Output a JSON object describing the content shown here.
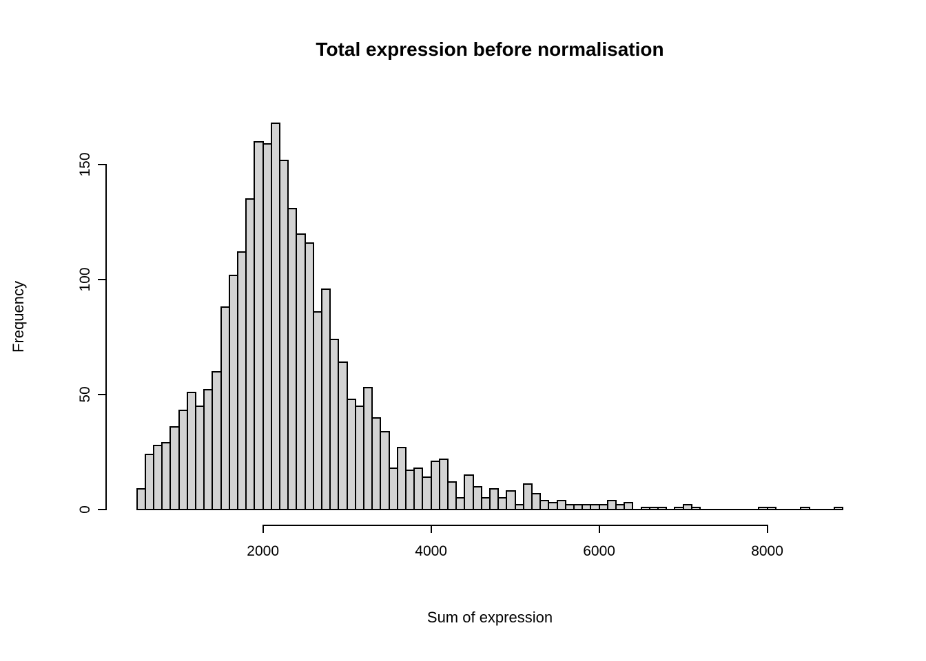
{
  "figure": {
    "background": "#ffffff",
    "text_color": "#000000"
  },
  "chart_data": {
    "type": "bar",
    "subtype": "histogram",
    "title": "Total expression before normalisation",
    "xlabel": "Sum of expression",
    "ylabel": "Frequency",
    "bin_start": 500,
    "bin_width": 100,
    "counts": [
      9,
      24,
      28,
      29,
      36,
      43,
      51,
      45,
      52,
      60,
      88,
      102,
      112,
      135,
      160,
      159,
      168,
      152,
      131,
      120,
      116,
      86,
      96,
      74,
      64,
      48,
      45,
      53,
      40,
      34,
      18,
      27,
      17,
      18,
      14,
      21,
      22,
      12,
      5,
      15,
      10,
      5,
      9,
      5,
      8,
      2,
      11,
      7,
      4,
      3,
      4,
      2,
      2,
      2,
      2,
      2,
      4,
      2,
      3,
      0,
      1,
      1,
      1,
      0,
      1,
      2,
      1,
      0,
      0,
      0,
      0,
      0,
      0,
      0,
      1,
      1,
      0,
      0,
      0,
      1,
      0,
      0,
      0,
      1
    ],
    "x_ticks": [
      2000,
      4000,
      6000,
      8000
    ],
    "y_ticks": [
      0,
      50,
      100,
      150
    ],
    "xlim": [
      500,
      8900
    ],
    "ylim": [
      0,
      168
    ],
    "grid": false,
    "legend": "none",
    "bar_fill": "#d3d3d3",
    "bar_stroke": "#000000"
  }
}
